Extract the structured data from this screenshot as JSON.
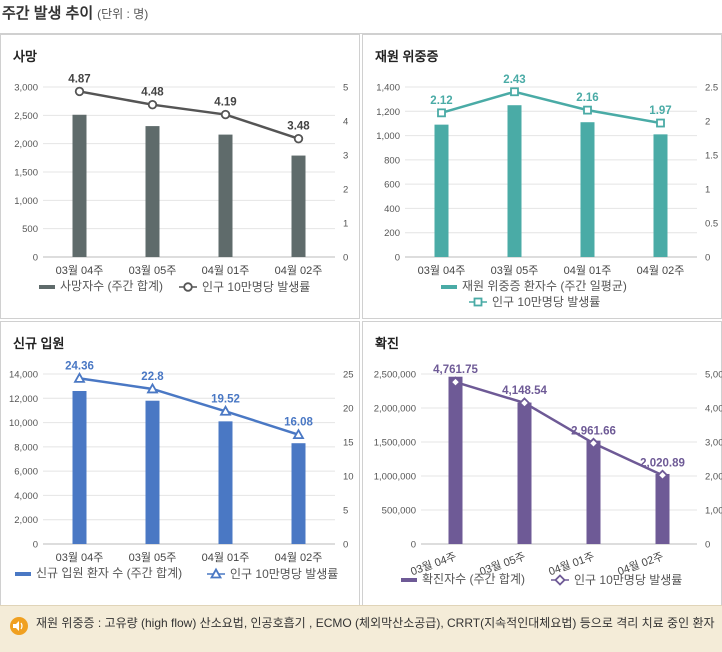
{
  "page": {
    "title": "주간 발생 추이",
    "unit": "(단위 : 명)"
  },
  "footer": {
    "icon": "speaker-icon",
    "note": "재원 위중증 : 고유량 (high flow) 산소요법, 인공호흡기 , ECMO (체외막산소공급), CRRT(지속적인대체요법) 등으로 격리 치료 중인 환자"
  },
  "chart_data": [
    {
      "type": "bar",
      "title": "사망",
      "categories": [
        "03월 04주",
        "03월 05주",
        "04월 01주",
        "04월 02주"
      ],
      "series": [
        {
          "name": "사망자수 (주간 합계)",
          "type": "bar",
          "axis": "left",
          "values": [
            2510,
            2310,
            2160,
            1790
          ]
        },
        {
          "name": "인구 10만명당 발생률",
          "type": "line",
          "axis": "right",
          "values": [
            4.87,
            4.48,
            4.19,
            3.48
          ]
        }
      ],
      "data_labels": [
        "4.87",
        "4.48",
        "4.19",
        "3.48"
      ],
      "y_left": {
        "min": 0,
        "max": 3000,
        "ticks": [
          "0",
          "500",
          "1,000",
          "1,500",
          "2,000",
          "2,500",
          "3,000"
        ]
      },
      "y_right": {
        "min": 0,
        "max": 5,
        "ticks": [
          "0",
          "1",
          "2",
          "3",
          "4",
          "5"
        ]
      },
      "bar_color": "#5f6b6b",
      "line_color": "#555555",
      "marker": "circle",
      "legend_layout": "row",
      "rotate_x": false,
      "legend": "bottom"
    },
    {
      "type": "bar",
      "title": "재원 위중증",
      "categories": [
        "03월 04주",
        "03월 05주",
        "04월 01주",
        "04월 02주"
      ],
      "series": [
        {
          "name": "재원 위중증 환자수 (주간 일평균)",
          "type": "bar",
          "axis": "left",
          "values": [
            1090,
            1250,
            1110,
            1010
          ]
        },
        {
          "name": "인구 10만명당 발생률",
          "type": "line",
          "axis": "right",
          "values": [
            2.12,
            2.43,
            2.16,
            1.97
          ]
        }
      ],
      "data_labels": [
        "2.12",
        "2.43",
        "2.16",
        "1.97"
      ],
      "y_left": {
        "min": 0,
        "max": 1400,
        "ticks": [
          "0",
          "200",
          "400",
          "600",
          "800",
          "1,000",
          "1,200",
          "1,400"
        ]
      },
      "y_right": {
        "min": 0,
        "max": 2.5,
        "ticks": [
          "0",
          "0.5",
          "1",
          "1.5",
          "2",
          "2.5"
        ]
      },
      "bar_color": "#4aaba6",
      "line_color": "#4aaba6",
      "marker": "square",
      "legend_layout": "stack",
      "rotate_x": false,
      "legend": "bottom"
    },
    {
      "type": "bar",
      "title": "신규 입원",
      "categories": [
        "03월 04주",
        "03월 05주",
        "04월 01주",
        "04월 02주"
      ],
      "series": [
        {
          "name": "신규 입원 환자 수 (주간 합계)",
          "type": "bar",
          "axis": "left",
          "values": [
            12600,
            11800,
            10100,
            8300
          ]
        },
        {
          "name": "인구 10만명당 발생률",
          "type": "line",
          "axis": "right",
          "values": [
            24.36,
            22.8,
            19.52,
            16.08
          ]
        }
      ],
      "data_labels": [
        "24.36",
        "22.8",
        "19.52",
        "16.08"
      ],
      "y_left": {
        "min": 0,
        "max": 14000,
        "ticks": [
          "0",
          "2,000",
          "4,000",
          "6,000",
          "8,000",
          "10,000",
          "12,000",
          "14,000"
        ]
      },
      "y_right": {
        "min": 0,
        "max": 25,
        "ticks": [
          "0",
          "5",
          "10",
          "15",
          "20",
          "25"
        ]
      },
      "bar_color": "#4a78c4",
      "line_color": "#4a78c4",
      "marker": "triangle",
      "legend_layout": "row",
      "rotate_x": false,
      "legend": "bottom"
    },
    {
      "type": "bar",
      "title": "확진",
      "categories": [
        "03월 04주",
        "03월 05주",
        "04월 01주",
        "04월 02주"
      ],
      "series": [
        {
          "name": "확진자수 (주간 합계)",
          "type": "bar",
          "axis": "left",
          "values": [
            2460000,
            2080000,
            1520000,
            1030000
          ]
        },
        {
          "name": "인구 10만명당 발생률",
          "type": "line",
          "axis": "right",
          "values": [
            4761.75,
            4148.54,
            2961.66,
            2020.89
          ]
        }
      ],
      "data_labels": [
        "4,761.75",
        "4,148.54",
        "2,961.66",
        "2,020.89"
      ],
      "y_left": {
        "min": 0,
        "max": 2500000,
        "ticks": [
          "0",
          "500,000",
          "1,000,000",
          "1,500,000",
          "2,000,000",
          "2,500,000"
        ]
      },
      "y_right": {
        "min": 0,
        "max": 5000,
        "ticks": [
          "0",
          "1,000",
          "2,000",
          "3,000",
          "4,000",
          "5,000"
        ]
      },
      "bar_color": "#6e5a96",
      "line_color": "#6e5a96",
      "marker": "diamond",
      "legend_layout": "row",
      "rotate_x": true,
      "legend": "bottom"
    }
  ]
}
